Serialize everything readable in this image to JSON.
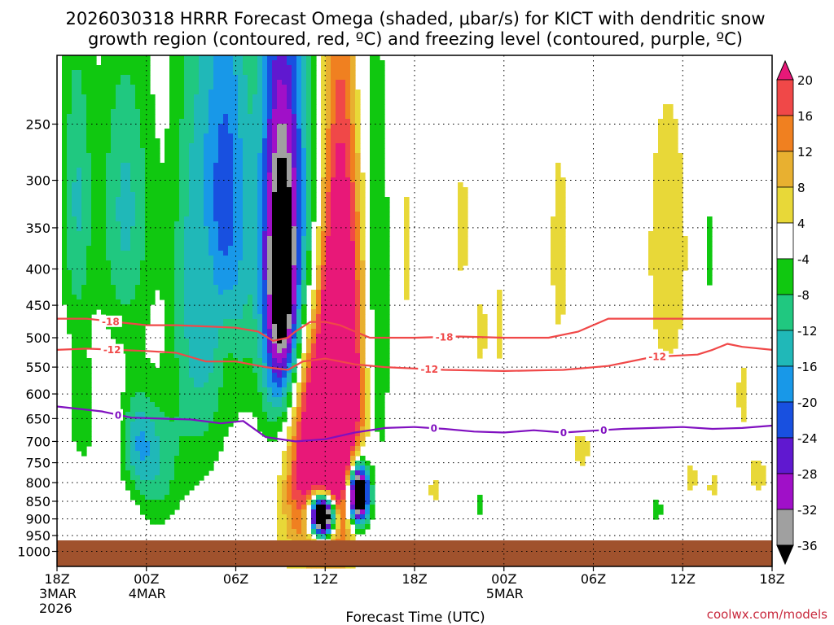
{
  "chart_data": {
    "type": "heatmap",
    "title_lines": [
      "2026030318 HRRR Forecast Omega (shaded, μbar/s) for KICT with dendritic snow",
      "growth region (contoured, red, ºC) and freezing level (contoured, purple, ºC)"
    ],
    "xlabel": "Forecast Time (UTC)",
    "credit": "coolwx.com/models",
    "x_range_hours": [
      0,
      48
    ],
    "x_ticks": [
      {
        "h": 0,
        "lines": [
          "18Z",
          "3MAR",
          "2026"
        ]
      },
      {
        "h": 6,
        "lines": [
          "00Z",
          "4MAR"
        ]
      },
      {
        "h": 12,
        "lines": [
          "06Z"
        ]
      },
      {
        "h": 18,
        "lines": [
          "12Z"
        ]
      },
      {
        "h": 24,
        "lines": [
          "18Z"
        ]
      },
      {
        "h": 30,
        "lines": [
          "00Z",
          "5MAR"
        ]
      },
      {
        "h": 36,
        "lines": [
          "06Z"
        ]
      },
      {
        "h": 42,
        "lines": [
          "12Z"
        ]
      },
      {
        "h": 48,
        "lines": [
          "18Z"
        ]
      }
    ],
    "y_range_hpa": [
      200,
      1050
    ],
    "y_ticks_hpa": [
      250,
      300,
      350,
      400,
      450,
      500,
      550,
      600,
      650,
      700,
      750,
      800,
      850,
      900,
      950,
      1000
    ],
    "colorbar_labels": [
      "20",
      "16",
      "12",
      "8",
      "4",
      "-4",
      "-8",
      "-12",
      "-16",
      "-20",
      "-24",
      "-28",
      "-32",
      "-36"
    ],
    "colorbar_bins": [
      {
        "max": 999,
        "color": "#e81878"
      },
      {
        "max": 20,
        "color": "#f04848"
      },
      {
        "max": 16,
        "color": "#f08020"
      },
      {
        "max": 12,
        "color": "#e8b030"
      },
      {
        "max": 8,
        "color": "#e8d838"
      },
      {
        "max": 4,
        "color": "#ffffff"
      },
      {
        "max": -4,
        "color": "#10c810"
      },
      {
        "max": -8,
        "color": "#20c880"
      },
      {
        "max": -12,
        "color": "#20b8b8"
      },
      {
        "max": -16,
        "color": "#1898e8"
      },
      {
        "max": -20,
        "color": "#1850e0"
      },
      {
        "max": -24,
        "color": "#6018d0"
      },
      {
        "max": -28,
        "color": "#a010c8"
      },
      {
        "max": -32,
        "color": "#a0a0a0"
      },
      {
        "max": -36,
        "color": "#000000"
      }
    ],
    "omega_blobs": [
      {
        "cx": 1.3,
        "p": 320,
        "sx": 0.75,
        "sp": 120,
        "a": -12
      },
      {
        "cx": 1.7,
        "p": 650,
        "sx": 0.7,
        "sp": 90,
        "a": -6
      },
      {
        "cx": 4.6,
        "p": 330,
        "sx": 1.3,
        "sp": 120,
        "a": -13
      },
      {
        "cx": 5.4,
        "p": 700,
        "sx": 0.8,
        "sp": 80,
        "a": -13
      },
      {
        "cx": 6.8,
        "p": 760,
        "sx": 1.0,
        "sp": 110,
        "a": -10
      },
      {
        "cx": 9.3,
        "p": 430,
        "sx": 1.2,
        "sp": 230,
        "a": -14
      },
      {
        "cx": 11.5,
        "p": 330,
        "sx": 1.1,
        "sp": 180,
        "a": -20
      },
      {
        "cx": 15.0,
        "p": 380,
        "sx": 1.1,
        "sp": 240,
        "a": -30
      },
      {
        "cx": 15.2,
        "p": 430,
        "sx": 0.75,
        "sp": 120,
        "a": -22
      },
      {
        "cx": 17.0,
        "p": 340,
        "sx": 0.8,
        "sp": 140,
        "a": -10
      },
      {
        "cx": 18.7,
        "p": 700,
        "sx": 1.3,
        "sp": 220,
        "a": -10
      },
      {
        "cx": 17.6,
        "p": 720,
        "sx": 1.8,
        "sp": 200,
        "a": 38
      },
      {
        "cx": 19.0,
        "p": 520,
        "sx": 1.0,
        "sp": 260,
        "a": 32
      },
      {
        "cx": 17.8,
        "p": 890,
        "sx": 0.6,
        "sp": 45,
        "a": -82
      },
      {
        "cx": 20.2,
        "p": 830,
        "sx": 0.5,
        "sp": 60,
        "a": -64
      },
      {
        "cx": 21.5,
        "p": 500,
        "sx": 0.6,
        "sp": 250,
        "a": -10
      },
      {
        "cx": 20.5,
        "p": 200,
        "sx": 0.4,
        "sp": 60,
        "a": -6
      },
      {
        "cx": 10.0,
        "p": 430,
        "sx": 0.6,
        "sp": 70,
        "a": 6
      },
      {
        "cx": 11.4,
        "p": 500,
        "sx": 0.5,
        "sp": 80,
        "a": 6
      },
      {
        "cx": 23.5,
        "p": 380,
        "sx": 0.3,
        "sp": 70,
        "a": 6
      },
      {
        "cx": 27.2,
        "p": 350,
        "sx": 0.35,
        "sp": 60,
        "a": 6
      },
      {
        "cx": 33.7,
        "p": 380,
        "sx": 0.5,
        "sp": 110,
        "a": 6
      },
      {
        "cx": 35.2,
        "p": 720,
        "sx": 0.5,
        "sp": 40,
        "a": 6
      },
      {
        "cx": 41.0,
        "p": 380,
        "sx": 1.1,
        "sp": 140,
        "a": 7
      },
      {
        "cx": 46.0,
        "p": 600,
        "sx": 0.3,
        "sp": 60,
        "a": 6
      },
      {
        "cx": 47.0,
        "p": 780,
        "sx": 0.6,
        "sp": 40,
        "a": 6
      },
      {
        "cx": 29.7,
        "p": 480,
        "sx": 0.3,
        "sp": 60,
        "a": 6
      },
      {
        "cx": 28.5,
        "p": 490,
        "sx": 0.25,
        "sp": 60,
        "a": 6
      },
      {
        "cx": 9.0,
        "p": 890,
        "sx": 0.25,
        "sp": 20,
        "a": 6
      },
      {
        "cx": 25.3,
        "p": 820,
        "sx": 0.25,
        "sp": 30,
        "a": 6
      },
      {
        "cx": 42.6,
        "p": 790,
        "sx": 0.3,
        "sp": 35,
        "a": 6
      },
      {
        "cx": 44.0,
        "p": 810,
        "sx": 0.25,
        "sp": 30,
        "a": 6
      },
      {
        "cx": 43.7,
        "p": 380,
        "sx": 0.2,
        "sp": 60,
        "a": -6
      },
      {
        "cx": 40.3,
        "p": 870,
        "sx": 0.3,
        "sp": 30,
        "a": -6
      },
      {
        "cx": 28.3,
        "p": 860,
        "sx": 0.2,
        "sp": 40,
        "a": -6
      }
    ],
    "ground_pressure_hpa": 965,
    "ground_color": "#a0522d",
    "contours": [
      {
        "name": "dgz-minus18",
        "label": "-18",
        "color": "#f04848",
        "label_h": [
          3.6,
          26.0
        ],
        "points": [
          [
            0,
            470
          ],
          [
            2,
            470
          ],
          [
            4,
            475
          ],
          [
            6,
            480
          ],
          [
            8,
            480
          ],
          [
            10,
            482
          ],
          [
            12,
            484
          ],
          [
            13.5,
            490
          ],
          [
            14.5,
            505
          ],
          [
            15.5,
            500
          ],
          [
            16,
            490
          ],
          [
            17,
            475
          ],
          [
            18,
            475
          ],
          [
            19,
            480
          ],
          [
            20,
            490
          ],
          [
            21,
            500
          ],
          [
            24,
            500
          ],
          [
            27,
            498
          ],
          [
            30,
            500
          ],
          [
            33,
            500
          ],
          [
            35,
            490
          ],
          [
            37,
            470
          ],
          [
            40,
            470
          ],
          [
            44,
            470
          ],
          [
            48,
            470
          ]
        ]
      },
      {
        "name": "dgz-minus12",
        "label": "-12",
        "color": "#f04848",
        "label_h": [
          3.7,
          25.0,
          40.3
        ],
        "points": [
          [
            0,
            520
          ],
          [
            2,
            518
          ],
          [
            4,
            520
          ],
          [
            6,
            522
          ],
          [
            8,
            525
          ],
          [
            10,
            540
          ],
          [
            12,
            540
          ],
          [
            14,
            550
          ],
          [
            15.5,
            555
          ],
          [
            16.5,
            540
          ],
          [
            18,
            535
          ],
          [
            20,
            545
          ],
          [
            22,
            550
          ],
          [
            26,
            555
          ],
          [
            30,
            557
          ],
          [
            34,
            555
          ],
          [
            37,
            548
          ],
          [
            40,
            532
          ],
          [
            43,
            528
          ],
          [
            44,
            520
          ],
          [
            45,
            510
          ],
          [
            46,
            515
          ],
          [
            48,
            520
          ]
        ]
      },
      {
        "name": "freezing-level",
        "label": "0",
        "color": "#8010c0",
        "label_h": [
          4.1,
          25.3,
          34.0,
          36.7
        ],
        "points": [
          [
            0,
            625
          ],
          [
            3,
            635
          ],
          [
            5,
            648
          ],
          [
            7,
            650
          ],
          [
            9,
            652
          ],
          [
            11,
            660
          ],
          [
            12.5,
            655
          ],
          [
            14,
            690
          ],
          [
            16,
            700
          ],
          [
            18,
            695
          ],
          [
            20,
            680
          ],
          [
            22,
            670
          ],
          [
            24,
            668
          ],
          [
            26,
            672
          ],
          [
            28,
            678
          ],
          [
            30,
            680
          ],
          [
            32,
            675
          ],
          [
            34,
            680
          ],
          [
            36,
            676
          ],
          [
            38,
            672
          ],
          [
            40,
            670
          ],
          [
            42,
            668
          ],
          [
            44,
            672
          ],
          [
            46,
            670
          ],
          [
            48,
            665
          ]
        ]
      }
    ]
  }
}
